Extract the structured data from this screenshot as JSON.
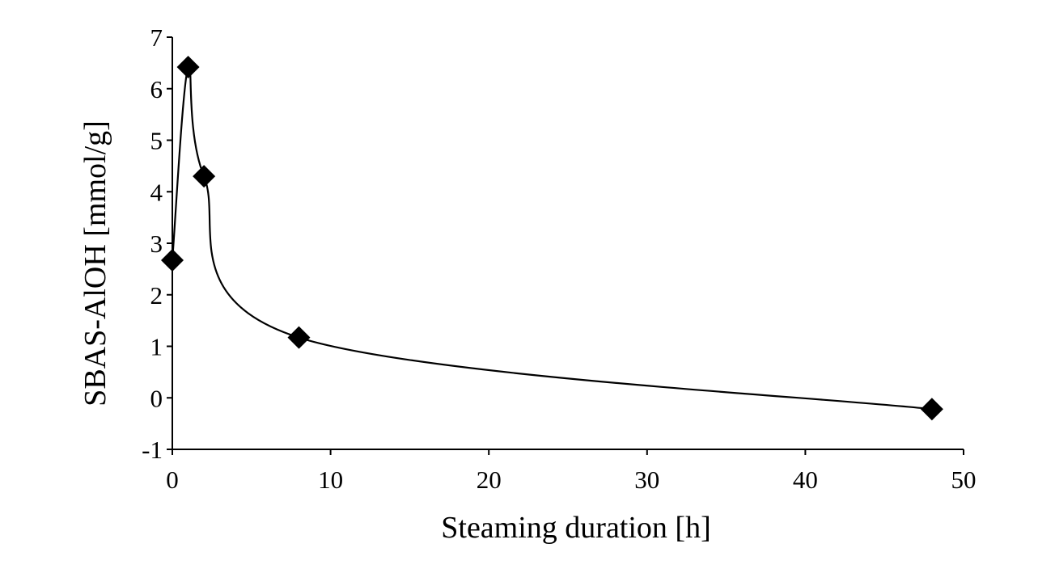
{
  "chart_data": {
    "type": "scatter",
    "title": "",
    "xlabel": "Steaming duration [h]",
    "ylabel": "SBAS-AlOH [mmol/g]",
    "xlim": [
      0,
      50
    ],
    "ylim": [
      -1,
      7
    ],
    "xticks": [
      0,
      10,
      20,
      30,
      40,
      50
    ],
    "yticks": [
      -1,
      0,
      1,
      2,
      3,
      4,
      5,
      6,
      7
    ],
    "grid": false,
    "legend": "none",
    "marker": "diamond",
    "line": "smoothed",
    "series": [
      {
        "points": [
          {
            "x": 0,
            "y": 2.67
          },
          {
            "x": 1,
            "y": 6.42
          },
          {
            "x": 2,
            "y": 4.3
          },
          {
            "x": 8,
            "y": 1.17
          },
          {
            "x": 48,
            "y": -0.22
          }
        ]
      }
    ],
    "colors": {
      "marker": "#000000",
      "line": "#000000",
      "background": "#ffffff"
    }
  }
}
